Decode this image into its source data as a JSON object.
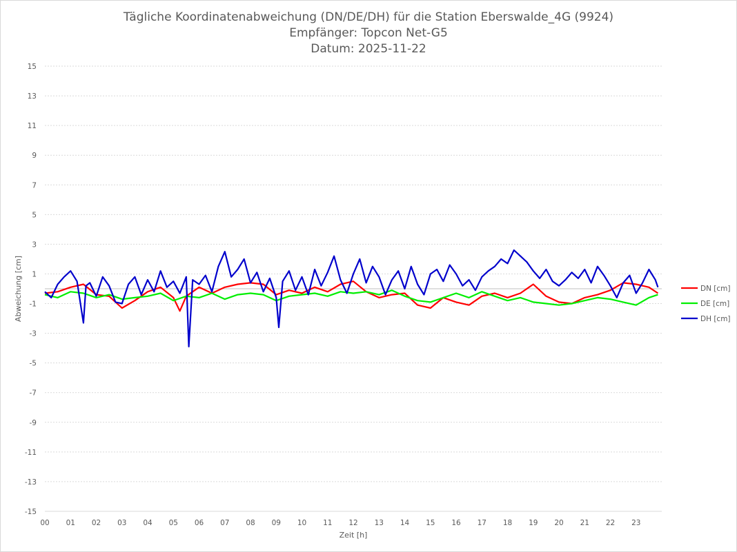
{
  "chart_data": {
    "type": "line",
    "title_lines": [
      "Tägliche Koordinatenabweichung (DN/DE/DH) für die Station Eberswalde_4G (9924)",
      "Empfänger: Topcon Net-G5",
      "Datum: 2025-11-22"
    ],
    "xlabel": "Zeit [h]",
    "ylabel": "Abweichung [cm]",
    "xlim": [
      0,
      24
    ],
    "ylim": [
      -15,
      15
    ],
    "x_tick_labels": [
      "00",
      "01",
      "02",
      "03",
      "04",
      "05",
      "06",
      "07",
      "08",
      "09",
      "10",
      "11",
      "12",
      "13",
      "14",
      "15",
      "16",
      "17",
      "18",
      "19",
      "20",
      "21",
      "22",
      "23"
    ],
    "y_tick_values": [
      15,
      13,
      11,
      9,
      7,
      5,
      3,
      1,
      -1,
      -3,
      -5,
      -7,
      -9,
      -11,
      -13,
      -15
    ],
    "y_tick_labels": [
      "15",
      "13",
      "11",
      "9",
      "7",
      "5",
      "3",
      "1",
      "-1",
      "-3",
      "-5",
      "-7",
      "-9",
      "-11",
      "-13",
      "-15"
    ],
    "legend_position": "right",
    "series": [
      {
        "name": "DN [cm]",
        "color": "#ff0000",
        "x": [
          0,
          0.5,
          1,
          1.5,
          2,
          2.5,
          3,
          3.5,
          4,
          4.5,
          5,
          5.25,
          5.5,
          6,
          6.5,
          7,
          7.5,
          8,
          8.5,
          9,
          9.5,
          10,
          10.5,
          11,
          11.5,
          12,
          12.5,
          13,
          13.5,
          14,
          14.5,
          15,
          15.5,
          16,
          16.5,
          17,
          17.5,
          18,
          18.5,
          19,
          19.5,
          20,
          20.5,
          21,
          21.5,
          22,
          22.5,
          23,
          23.5,
          23.85
        ],
        "y": [
          -0.3,
          -0.2,
          0.1,
          0.3,
          -0.4,
          -0.5,
          -1.3,
          -0.8,
          -0.2,
          0.1,
          -0.6,
          -1.5,
          -0.5,
          0.1,
          -0.3,
          0.1,
          0.3,
          0.4,
          0.3,
          -0.4,
          -0.1,
          -0.3,
          0.1,
          -0.2,
          0.3,
          0.5,
          -0.2,
          -0.6,
          -0.4,
          -0.3,
          -1.1,
          -1.3,
          -0.6,
          -0.9,
          -1.1,
          -0.5,
          -0.3,
          -0.6,
          -0.3,
          0.3,
          -0.5,
          -0.9,
          -1.0,
          -0.6,
          -0.4,
          -0.1,
          0.4,
          0.3,
          0.1,
          -0.3
        ]
      },
      {
        "name": "DE [cm]",
        "color": "#00ee00",
        "x": [
          0,
          0.5,
          1,
          1.5,
          2,
          2.5,
          3,
          3.5,
          4,
          4.5,
          5,
          5.5,
          6,
          6.5,
          7,
          7.5,
          8,
          8.5,
          9,
          9.5,
          10,
          10.5,
          11,
          11.5,
          12,
          12.5,
          13,
          13.5,
          14,
          14.5,
          15,
          15.5,
          16,
          16.5,
          17,
          17.5,
          18,
          18.5,
          19,
          19.5,
          20,
          20.5,
          21,
          21.5,
          22,
          22.5,
          23,
          23.5,
          23.85
        ],
        "y": [
          -0.4,
          -0.6,
          -0.2,
          -0.3,
          -0.6,
          -0.4,
          -0.7,
          -0.6,
          -0.5,
          -0.3,
          -0.8,
          -0.5,
          -0.6,
          -0.3,
          -0.7,
          -0.4,
          -0.3,
          -0.4,
          -0.8,
          -0.5,
          -0.4,
          -0.3,
          -0.5,
          -0.2,
          -0.3,
          -0.2,
          -0.4,
          -0.1,
          -0.5,
          -0.8,
          -0.9,
          -0.6,
          -0.3,
          -0.6,
          -0.2,
          -0.5,
          -0.8,
          -0.6,
          -0.9,
          -1.0,
          -1.1,
          -1.0,
          -0.8,
          -0.6,
          -0.7,
          -0.9,
          -1.1,
          -0.6,
          -0.4
        ]
      },
      {
        "name": "DH [cm]",
        "color": "#0000cc",
        "x": [
          0,
          0.25,
          0.5,
          0.75,
          1,
          1.25,
          1.5,
          1.6,
          1.75,
          2,
          2.25,
          2.5,
          2.75,
          3,
          3.25,
          3.5,
          3.75,
          4,
          4.25,
          4.5,
          4.75,
          5,
          5.25,
          5.5,
          5.6,
          5.75,
          6,
          6.25,
          6.5,
          6.75,
          7,
          7.25,
          7.5,
          7.75,
          8,
          8.25,
          8.5,
          8.75,
          9,
          9.1,
          9.25,
          9.5,
          9.75,
          10,
          10.25,
          10.5,
          10.75,
          11,
          11.25,
          11.5,
          11.75,
          12,
          12.25,
          12.5,
          12.75,
          13,
          13.25,
          13.5,
          13.75,
          14,
          14.25,
          14.5,
          14.75,
          15,
          15.25,
          15.5,
          15.75,
          16,
          16.25,
          16.5,
          16.75,
          17,
          17.25,
          17.5,
          17.75,
          18,
          18.25,
          18.5,
          18.75,
          19,
          19.25,
          19.5,
          19.75,
          20,
          20.25,
          20.5,
          20.75,
          21,
          21.25,
          21.5,
          21.75,
          22,
          22.25,
          22.5,
          22.75,
          23,
          23.25,
          23.5,
          23.75,
          23.85
        ],
        "y": [
          -0.2,
          -0.6,
          0.3,
          0.8,
          1.2,
          0.5,
          -2.3,
          0.2,
          0.4,
          -0.5,
          0.8,
          0.2,
          -0.9,
          -1.0,
          0.3,
          0.8,
          -0.4,
          0.6,
          -0.2,
          1.2,
          0.1,
          0.5,
          -0.3,
          0.8,
          -3.9,
          0.6,
          0.3,
          0.9,
          -0.2,
          1.5,
          2.5,
          0.8,
          1.3,
          2.0,
          0.4,
          1.1,
          -0.2,
          0.7,
          -0.6,
          -2.6,
          0.5,
          1.2,
          -0.1,
          0.8,
          -0.4,
          1.3,
          0.2,
          1.1,
          2.2,
          0.6,
          -0.3,
          1.0,
          2.0,
          0.4,
          1.5,
          0.8,
          -0.4,
          0.6,
          1.2,
          0.0,
          1.5,
          0.3,
          -0.4,
          1.0,
          1.3,
          0.5,
          1.6,
          1.0,
          0.2,
          0.6,
          -0.1,
          0.8,
          1.2,
          1.5,
          2.0,
          1.7,
          2.6,
          2.2,
          1.8,
          1.2,
          0.7,
          1.3,
          0.5,
          0.2,
          0.6,
          1.1,
          0.7,
          1.3,
          0.4,
          1.5,
          0.9,
          0.2,
          -0.6,
          0.4,
          0.9,
          -0.3,
          0.4,
          1.3,
          0.6,
          0.1
        ]
      }
    ]
  }
}
